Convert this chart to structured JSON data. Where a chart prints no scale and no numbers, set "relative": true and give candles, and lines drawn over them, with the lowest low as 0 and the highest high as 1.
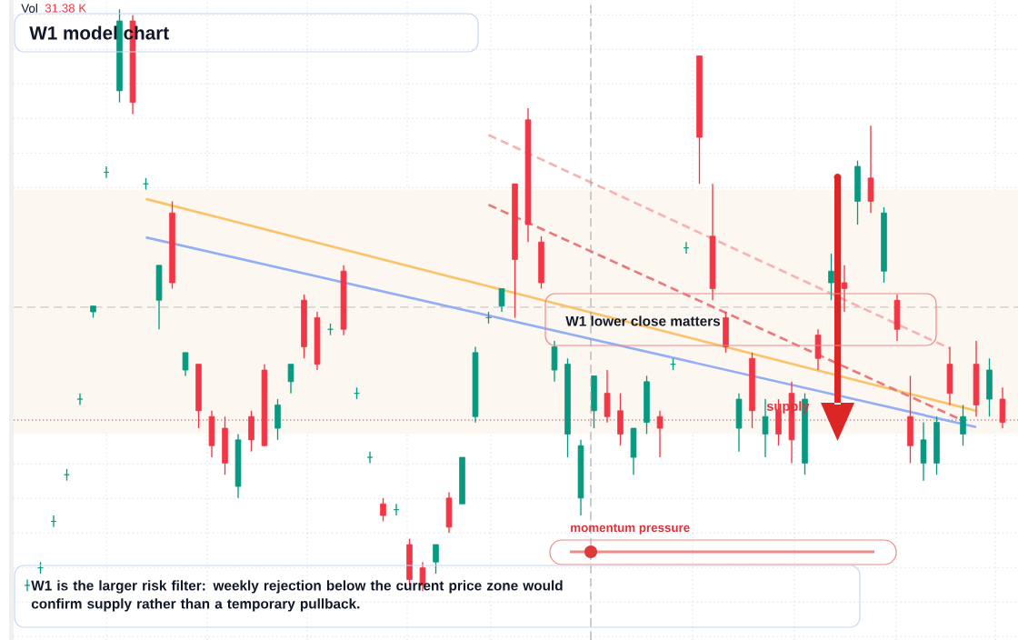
{
  "chart_data": {
    "type": "candlestick",
    "relative": true,
    "grid": true,
    "title": "W1 model chart",
    "categories": [
      null,
      null,
      null,
      null,
      null,
      null,
      null,
      null,
      null,
      null,
      null,
      null,
      null,
      null,
      null,
      null,
      null,
      null,
      null,
      null,
      null,
      null,
      null,
      null,
      null,
      null,
      null,
      null,
      null,
      null,
      null,
      null,
      null,
      null,
      null,
      null,
      null,
      null,
      null,
      null,
      null,
      null,
      null,
      null,
      null,
      null,
      null,
      null,
      null,
      null,
      null,
      null,
      null,
      null,
      null,
      null,
      null,
      null,
      null,
      null,
      null,
      null,
      null,
      null,
      null,
      null,
      null,
      null,
      null,
      null,
      null,
      null,
      null,
      null,
      null
    ],
    "ohlc": [
      [
        0.01,
        0.02,
        0.0,
        0.01
      ],
      [
        0.04,
        0.05,
        0.03,
        0.04
      ],
      [
        0.12,
        0.13,
        0.11,
        0.12
      ],
      [
        0.2,
        0.21,
        0.19,
        0.2
      ],
      [
        0.33,
        0.34,
        0.32,
        0.33
      ],
      [
        0.48,
        0.49,
        0.47,
        0.49
      ],
      [
        0.72,
        0.73,
        0.71,
        0.72
      ],
      [
        0.86,
        1.0,
        0.84,
        0.98
      ],
      [
        0.98,
        0.99,
        0.82,
        0.84
      ],
      [
        0.7,
        0.71,
        0.69,
        0.7
      ],
      [
        0.5,
        0.56,
        0.45,
        0.56
      ],
      [
        0.65,
        0.67,
        0.52,
        0.53
      ],
      [
        0.38,
        0.41,
        0.37,
        0.41
      ],
      [
        0.39,
        0.39,
        0.28,
        0.31
      ],
      [
        0.3,
        0.31,
        0.23,
        0.25
      ],
      [
        0.28,
        0.3,
        0.2,
        0.22
      ],
      [
        0.18,
        0.27,
        0.16,
        0.26
      ],
      [
        0.3,
        0.31,
        0.24,
        0.26
      ],
      [
        0.38,
        0.39,
        0.25,
        0.25
      ],
      [
        0.28,
        0.33,
        0.26,
        0.32
      ],
      [
        0.36,
        0.39,
        0.34,
        0.39
      ],
      [
        0.5,
        0.51,
        0.4,
        0.42
      ],
      [
        0.47,
        0.48,
        0.38,
        0.39
      ],
      [
        0.45,
        0.46,
        0.44,
        0.45
      ],
      [
        0.55,
        0.56,
        0.44,
        0.45
      ],
      [
        0.34,
        0.35,
        0.33,
        0.34
      ],
      [
        0.23,
        0.24,
        0.22,
        0.23
      ],
      [
        0.15,
        0.16,
        0.12,
        0.13
      ],
      [
        0.14,
        0.15,
        0.13,
        0.14
      ],
      [
        0.08,
        0.09,
        0.01,
        0.02
      ],
      [
        0.04,
        0.05,
        0.0,
        0.01
      ],
      [
        0.05,
        0.08,
        0.03,
        0.08
      ],
      [
        0.16,
        0.17,
        0.1,
        0.11
      ],
      [
        0.15,
        0.23,
        0.15,
        0.23
      ],
      [
        0.3,
        0.42,
        0.29,
        0.41
      ],
      [
        0.47,
        0.48,
        0.46,
        0.47
      ],
      [
        0.49,
        0.52,
        0.48,
        0.52
      ],
      [
        0.7,
        0.7,
        0.47,
        0.57
      ],
      [
        0.81,
        0.83,
        0.6,
        0.63
      ],
      [
        0.6,
        0.61,
        0.52,
        0.53
      ],
      [
        0.38,
        0.43,
        0.36,
        0.42
      ],
      [
        0.27,
        0.4,
        0.23,
        0.39
      ],
      [
        0.16,
        0.26,
        0.13,
        0.25
      ],
      [
        0.31,
        0.37,
        0.28,
        0.37
      ],
      [
        0.34,
        0.38,
        0.29,
        0.3
      ],
      [
        0.31,
        0.34,
        0.25,
        0.27
      ],
      [
        0.23,
        0.28,
        0.2,
        0.28
      ],
      [
        0.29,
        0.37,
        0.27,
        0.36
      ],
      [
        0.3,
        0.31,
        0.23,
        0.28
      ],
      [
        0.39,
        0.4,
        0.38,
        0.39
      ],
      [
        0.59,
        0.6,
        0.58,
        0.59
      ],
      [
        0.92,
        0.92,
        0.7,
        0.78
      ],
      [
        0.61,
        0.7,
        0.5,
        0.52
      ],
      [
        0.47,
        0.48,
        0.41,
        0.42
      ],
      [
        0.28,
        0.34,
        0.24,
        0.33
      ],
      [
        0.4,
        0.41,
        0.28,
        0.31
      ],
      [
        0.27,
        0.33,
        0.23,
        0.3
      ],
      [
        0.31,
        0.33,
        0.25,
        0.27
      ],
      [
        0.34,
        0.36,
        0.22,
        0.26
      ],
      [
        0.22,
        0.34,
        0.2,
        0.33
      ],
      [
        0.44,
        0.45,
        0.38,
        0.4
      ],
      [
        0.53,
        0.58,
        0.5,
        0.55
      ],
      [
        0.53,
        0.56,
        0.48,
        0.52
      ],
      [
        0.67,
        0.74,
        0.63,
        0.73
      ],
      [
        0.71,
        0.8,
        0.65,
        0.67
      ],
      [
        0.55,
        0.66,
        0.53,
        0.65
      ],
      [
        0.5,
        0.51,
        0.43,
        0.45
      ],
      [
        0.3,
        0.37,
        0.22,
        0.25
      ],
      [
        0.22,
        0.29,
        0.19,
        0.26
      ],
      [
        0.22,
        0.3,
        0.2,
        0.29
      ],
      [
        0.39,
        0.42,
        0.32,
        0.34
      ],
      [
        0.27,
        0.32,
        0.25,
        0.3
      ],
      [
        0.39,
        0.43,
        0.3,
        0.32
      ],
      [
        0.33,
        0.4,
        0.3,
        0.38
      ],
      [
        0.33,
        0.35,
        0.28,
        0.29
      ]
    ],
    "series": [
      {
        "type": "line",
        "color": "#f9c46b",
        "line_style": "solid",
        "values": [
          null,
          null,
          null,
          null,
          null,
          null,
          null,
          null,
          null,
          0.674,
          null,
          null,
          null,
          null,
          null,
          null,
          null,
          null,
          null,
          null,
          null,
          null,
          null,
          null,
          null,
          null,
          null,
          null,
          null,
          null,
          null,
          null,
          null,
          null,
          null,
          null,
          null,
          null,
          null,
          null,
          null,
          null,
          null,
          null,
          null,
          null,
          null,
          null,
          null,
          null,
          null,
          null,
          null,
          null,
          null,
          null,
          null,
          null,
          null,
          null,
          null,
          null,
          null,
          null,
          null,
          null,
          null,
          null,
          null,
          null,
          null,
          null,
          0.31,
          null,
          null
        ]
      },
      {
        "type": "line",
        "color": "#93aef5",
        "line_style": "solid",
        "values": [
          null,
          null,
          null,
          null,
          null,
          null,
          null,
          null,
          null,
          0.608,
          null,
          null,
          null,
          null,
          null,
          null,
          null,
          null,
          null,
          null,
          null,
          null,
          null,
          null,
          null,
          null,
          null,
          null,
          null,
          null,
          null,
          null,
          null,
          null,
          null,
          null,
          null,
          null,
          null,
          null,
          null,
          null,
          null,
          null,
          null,
          null,
          null,
          null,
          null,
          null,
          null,
          null,
          null,
          null,
          null,
          null,
          null,
          null,
          null,
          null,
          null,
          null,
          null,
          null,
          null,
          null,
          null,
          null,
          null,
          null,
          null,
          null,
          0.282,
          null,
          null
        ]
      },
      {
        "type": "line",
        "color": "#e87a7a",
        "line_style": "dashed",
        "values": [
          null,
          null,
          null,
          null,
          null,
          null,
          null,
          null,
          null,
          null,
          null,
          null,
          null,
          null,
          null,
          null,
          null,
          null,
          null,
          null,
          null,
          null,
          null,
          null,
          null,
          null,
          null,
          null,
          null,
          null,
          null,
          null,
          null,
          null,
          null,
          0.664,
          null,
          null,
          null,
          null,
          null,
          null,
          null,
          null,
          null,
          null,
          null,
          null,
          null,
          null,
          null,
          null,
          null,
          null,
          null,
          null,
          null,
          null,
          null,
          null,
          null,
          null,
          null,
          null,
          null,
          null,
          null,
          null,
          null,
          null,
          null,
          0.293,
          null,
          null,
          null
        ]
      },
      {
        "type": "line",
        "color": "#f5b3b3",
        "line_style": "dashed",
        "values": [
          null,
          null,
          null,
          null,
          null,
          null,
          null,
          null,
          null,
          null,
          null,
          null,
          null,
          null,
          null,
          null,
          null,
          null,
          null,
          null,
          null,
          null,
          null,
          null,
          null,
          null,
          null,
          null,
          null,
          null,
          null,
          null,
          null,
          null,
          null,
          0.784,
          null,
          null,
          null,
          null,
          null,
          null,
          null,
          null,
          null,
          null,
          null,
          null,
          null,
          null,
          null,
          null,
          null,
          null,
          null,
          null,
          null,
          null,
          null,
          null,
          null,
          null,
          null,
          null,
          null,
          null,
          null,
          null,
          null,
          null,
          0.417,
          null,
          null,
          null,
          null
        ]
      }
    ],
    "ref_lines": [
      {
        "axis": "y",
        "value": 0.294,
        "color": "#f23645",
        "line_style": "dotted"
      },
      {
        "axis": "y",
        "value": 0.488,
        "color": "#9a9a9a",
        "line_style": "dashed"
      }
    ],
    "bands": [
      {
        "axis": "y",
        "from": 0.27,
        "to": 0.69,
        "color": "#fdf7f2"
      }
    ],
    "annotations": [
      "Vol",
      "31.38 K",
      "W1 lower close matters",
      "supply",
      "momentum pressure",
      "W1 is the larger risk filter: weekly rejection below the current price zone would confirm supply rather than a temporary pullback."
    ]
  }
}
